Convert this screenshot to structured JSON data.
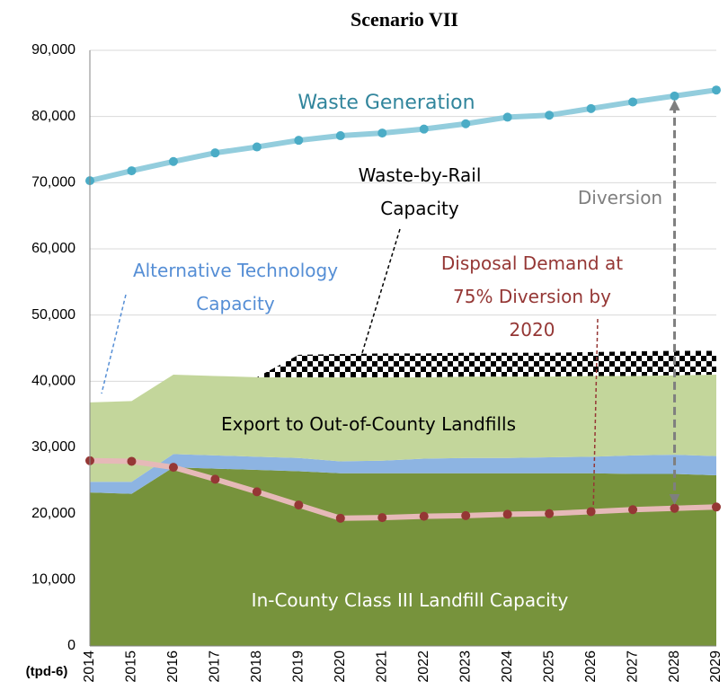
{
  "chart_data": {
    "type": "stacked_area_line",
    "title": "Scenario VII",
    "x_label": "(tpd-6)",
    "x": [
      2014,
      2015,
      2016,
      2017,
      2018,
      2019,
      2020,
      2021,
      2022,
      2023,
      2024,
      2025,
      2026,
      2027,
      2028,
      2029
    ],
    "xlim": [
      2014,
      2029
    ],
    "ylim": [
      0,
      90000
    ],
    "yticks": [
      0,
      {
        "value": 10000,
        "label": "10,000"
      },
      {
        "value": 20000,
        "label": "20,000"
      },
      {
        "value": 30000,
        "label": "30,000"
      },
      {
        "value": 40000,
        "label": "40,000"
      },
      {
        "value": 50000,
        "label": "50,000"
      },
      {
        "value": 60000,
        "label": "60,000"
      },
      {
        "value": 70000,
        "label": "70,000"
      },
      {
        "value": 80000,
        "label": "80,000"
      },
      {
        "value": 90000,
        "label": "90,000"
      }
    ],
    "grid": true,
    "areas": [
      {
        "name": "In-County Class III Landfill Capacity",
        "color": "#77933c",
        "values": [
          23200,
          23000,
          27000,
          26800,
          26600,
          26400,
          26100,
          26100,
          26100,
          26100,
          26100,
          26100,
          26100,
          26000,
          26000,
          25800
        ]
      },
      {
        "name": "Alternative Technology\nCapacity",
        "color": "#8db4e2",
        "values": [
          1600,
          1800,
          2000,
          2000,
          2000,
          2000,
          1800,
          1900,
          2200,
          2300,
          2300,
          2400,
          2500,
          2800,
          2900,
          2900
        ]
      },
      {
        "name": "Export to Out-of-County Landfills",
        "color": "#c3d69b",
        "values": [
          12000,
          12200,
          12000,
          12000,
          12000,
          12200,
          12700,
          12600,
          12300,
          12300,
          12300,
          12200,
          12200,
          12000,
          12000,
          12300
        ]
      },
      {
        "name": "Waste-by-Rail\nCapacity",
        "color": "checker",
        "values": [
          0,
          0,
          0,
          0,
          0,
          3400,
          3500,
          3600,
          3600,
          3600,
          3600,
          3600,
          3600,
          3700,
          3700,
          3600
        ]
      }
    ],
    "lines": [
      {
        "name": "Waste Generation",
        "color": "#93cddd",
        "marker_color": "#4bacc6",
        "values": [
          70300,
          71800,
          73200,
          74500,
          75400,
          76400,
          77100,
          77500,
          78100,
          78900,
          79900,
          80200,
          81200,
          82200,
          83100,
          84000
        ]
      },
      {
        "name": "Disposal Demand at\n75% Diversion by 2020",
        "color": "#e6b9b8",
        "marker_color": "#953735",
        "values": [
          28000,
          27900,
          27000,
          25200,
          23300,
          21300,
          19300,
          19400,
          19600,
          19700,
          19900,
          20000,
          20300,
          20600,
          20800,
          21000
        ]
      }
    ],
    "annotations": [
      "Diversion"
    ]
  }
}
